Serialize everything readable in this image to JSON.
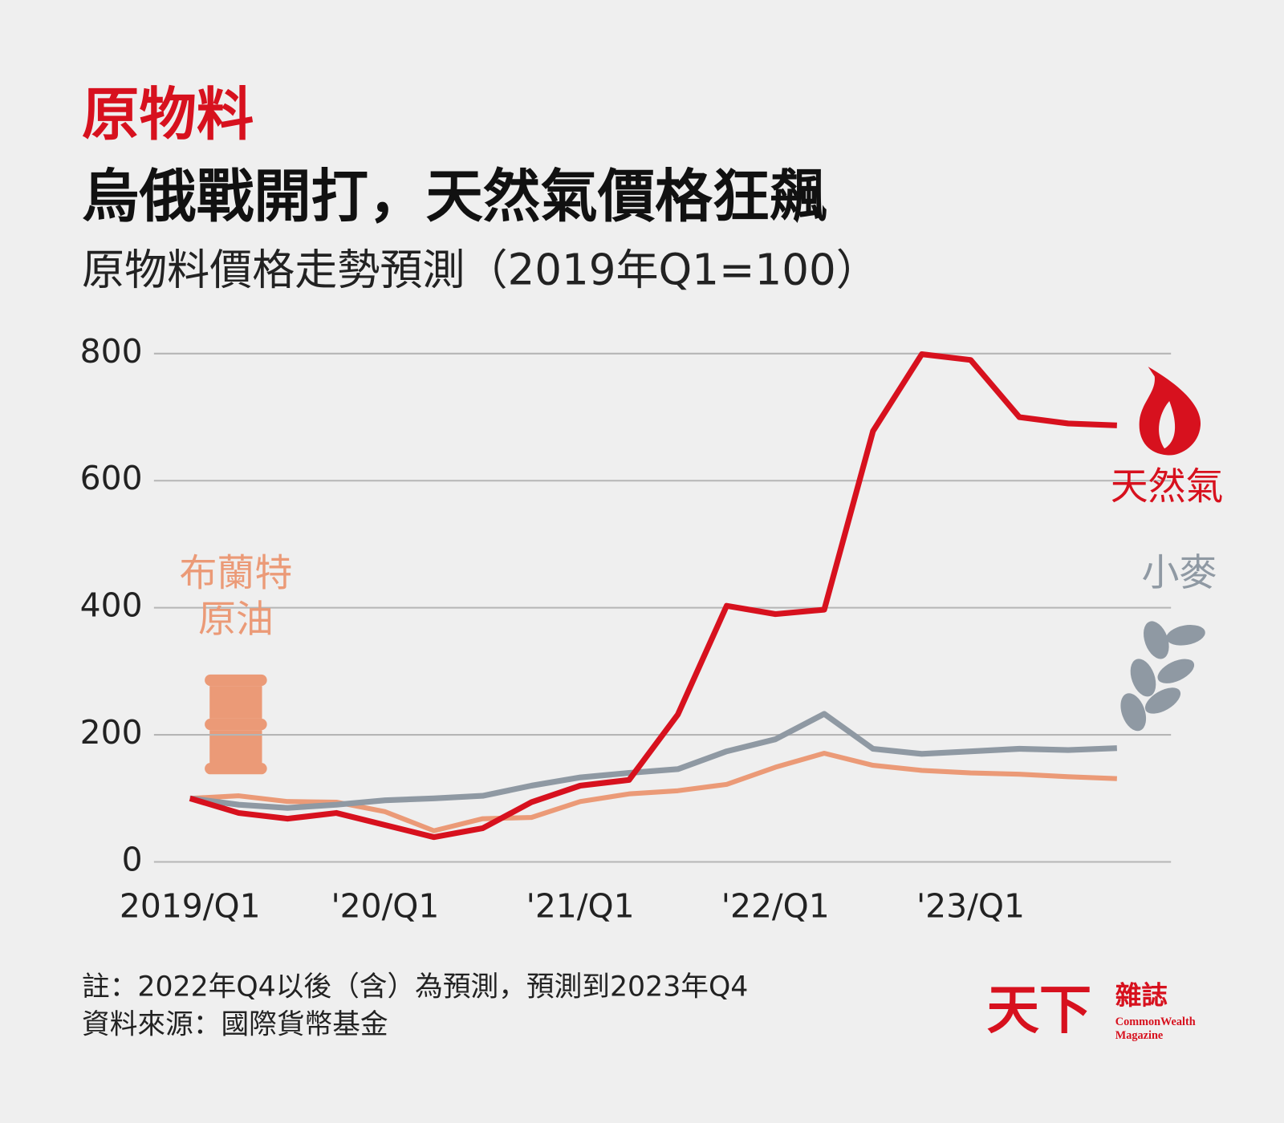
{
  "chart_data": {
    "type": "line",
    "kicker": "原物料",
    "title": "烏俄戰開打，天然氣價格狂飆",
    "subtitle": "原物料價格走勢預測（2019年Q1=100）",
    "categories": [
      "2019/Q1",
      null,
      null,
      null,
      "'20/Q1",
      null,
      null,
      null,
      "'21/Q1",
      null,
      null,
      null,
      "'22/Q1",
      null,
      null,
      null,
      "'23/Q1",
      null,
      null,
      null
    ],
    "series": [
      {
        "name": "布蘭特原油",
        "color": "#eb9a77",
        "values": [
          100,
          104,
          95,
          94,
          79,
          49,
          68,
          70,
          95,
          107,
          112,
          122,
          149,
          171,
          152,
          144,
          140,
          138,
          134,
          131
        ]
      },
      {
        "name": "天然氣",
        "color": "#d7111e",
        "values": [
          100,
          77,
          68,
          77,
          58,
          39,
          53,
          94,
          120,
          129,
          232,
          403,
          390,
          397,
          678,
          799,
          790,
          700,
          690,
          687
        ]
      },
      {
        "name": "小麥",
        "color": "#8f99a3",
        "values": [
          100,
          90,
          85,
          90,
          97,
          100,
          104,
          120,
          133,
          140,
          146,
          174,
          193,
          233,
          178,
          170,
          174,
          178,
          176,
          179
        ]
      }
    ],
    "ylim": [
      0,
      800
    ],
    "yticks": [
      0,
      200,
      400,
      600,
      800
    ],
    "grid": true,
    "notes": [
      "註：2022年Q4以後（含）為預測，預測到2023年Q4",
      "資料來源：國際貨幣基金"
    ],
    "logo": {
      "main": "天下",
      "sub": "雜誌",
      "english": [
        "CommonWealth",
        "Magazine"
      ]
    }
  }
}
